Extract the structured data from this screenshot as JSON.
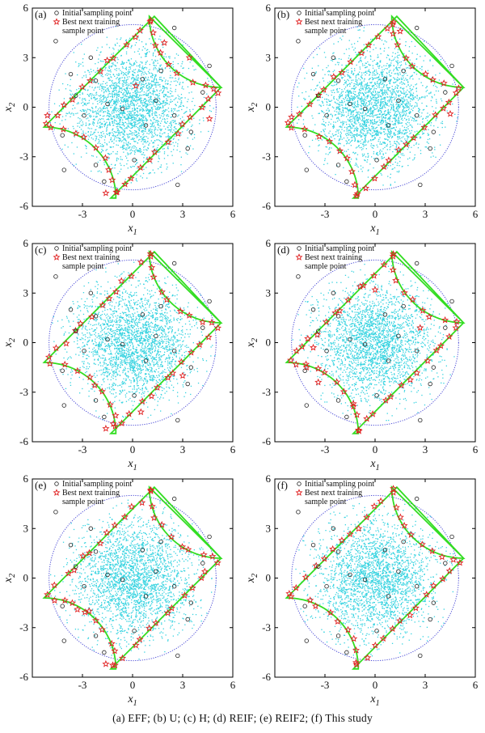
{
  "caption": "(a) EFF; (b) U; (c) H; (d) REIF; (e) REIF2; (f) This study",
  "colors": {
    "sample_points": "#35d3e0",
    "limit_state": "#33dd22",
    "sampling_circle": "#4a4ad6",
    "initial_points": "#222222",
    "best_next_points": "#e02020"
  },
  "chart_data": [
    {
      "type": "scatter",
      "panel": "(a)",
      "xlabel": "x1",
      "ylabel": "x2",
      "xlim": [
        -6,
        6
      ],
      "ylim": [
        -6,
        6
      ],
      "xticks": [
        "-3",
        "0",
        "3",
        "6"
      ],
      "yticks": [
        "-6",
        "-3",
        "0",
        "3",
        "6"
      ],
      "legend": [
        "Initial sampling point",
        "Best next training",
        "sample point"
      ],
      "legend_position": "top-left",
      "series": [
        {
          "name": "Initial sampling point",
          "marker": "circle"
        },
        {
          "name": "Best next training sample point",
          "marker": "star"
        }
      ],
      "extra_stars": [
        [
          0.2,
          1.3
        ],
        [
          -1.6,
          -5.2
        ],
        [
          3.4,
          3.0
        ],
        [
          1.9,
          3.9
        ],
        [
          -5.1,
          -0.5
        ],
        [
          4.6,
          -0.7
        ]
      ]
    },
    {
      "type": "scatter",
      "panel": "(b)",
      "xlabel": "x1",
      "ylabel": "x2",
      "xlim": [
        -6,
        6
      ],
      "ylim": [
        -6,
        6
      ],
      "xticks": [
        "-3",
        "0",
        "3",
        "6"
      ],
      "yticks": [
        "-6",
        "-3",
        "0",
        "3",
        "6"
      ],
      "legend": [
        "Initial sampling point",
        "Best next training",
        "sample point"
      ],
      "legend_position": "top-left",
      "series": [
        {
          "name": "Initial sampling point",
          "marker": "circle"
        },
        {
          "name": "Best next training sample point",
          "marker": "star"
        }
      ],
      "extra_stars": [
        [
          -5.0,
          -0.6
        ],
        [
          1.5,
          4.6
        ],
        [
          4.5,
          -0.4
        ]
      ]
    },
    {
      "type": "scatter",
      "panel": "(c)",
      "xlabel": "x1",
      "ylabel": "x2",
      "xlim": [
        -6,
        6
      ],
      "ylim": [
        -6,
        6
      ],
      "xticks": [
        "-3",
        "0",
        "3",
        "6"
      ],
      "yticks": [
        "-6",
        "-3",
        "0",
        "3",
        "6"
      ],
      "legend": [
        "Initial sampling point",
        "Best next training",
        "sample point"
      ],
      "legend_position": "top-left",
      "series": [
        {
          "name": "Initial sampling point",
          "marker": "circle"
        },
        {
          "name": "Best next training sample point",
          "marker": "star"
        }
      ],
      "extra_stars": [
        [
          -1.6,
          -5.2
        ],
        [
          0.5,
          -4.2
        ],
        [
          3.0,
          -2.0
        ]
      ]
    },
    {
      "type": "scatter",
      "panel": "(d)",
      "xlabel": "x1",
      "ylabel": "x2",
      "xlim": [
        -6,
        6
      ],
      "ylim": [
        -6,
        6
      ],
      "xticks": [
        "-3",
        "0",
        "3",
        "6"
      ],
      "yticks": [
        "-6",
        "-3",
        "0",
        "3",
        "6"
      ],
      "legend": [
        "Initial sampling point",
        "Best next training",
        "sample point"
      ],
      "legend_position": "top-left",
      "series": [
        {
          "name": "Initial sampling point",
          "marker": "circle"
        },
        {
          "name": "Best next training sample point",
          "marker": "star"
        }
      ],
      "extra_stars": [
        [
          -4.7,
          -0.5
        ],
        [
          -3.7,
          -0.3
        ],
        [
          -3.4,
          -2.4
        ],
        [
          -4.1,
          -1.5
        ],
        [
          0.0,
          3.2
        ],
        [
          -1.3,
          -3.7
        ],
        [
          2.7,
          0.9
        ]
      ]
    },
    {
      "type": "scatter",
      "panel": "(e)",
      "xlabel": "x1",
      "ylabel": "x2",
      "xlim": [
        -6,
        6
      ],
      "ylim": [
        -6,
        6
      ],
      "xticks": [
        "-3",
        "0",
        "3",
        "6"
      ],
      "yticks": [
        "-6",
        "-3",
        "0",
        "3",
        "6"
      ],
      "legend": [
        "Initial sampling point",
        "Best next training",
        "sample point"
      ],
      "legend_position": "top-left",
      "series": [
        {
          "name": "Initial sampling point",
          "marker": "circle"
        },
        {
          "name": "Best next training sample point",
          "marker": "star"
        }
      ],
      "extra_stars": [
        [
          -1.6,
          -5.2
        ],
        [
          -3.3,
          -1.9
        ],
        [
          -2.6,
          -2.0
        ]
      ]
    },
    {
      "type": "scatter",
      "panel": "(f)",
      "xlabel": "x1",
      "ylabel": "x2",
      "xlim": [
        -6,
        6
      ],
      "ylim": [
        -6,
        6
      ],
      "xticks": [
        "-3",
        "0",
        "3",
        "6"
      ],
      "yticks": [
        "-6",
        "-3",
        "0",
        "3",
        "6"
      ],
      "legend": [
        "Initial sampling point",
        "Best next training",
        "sample point"
      ],
      "legend_position": "top-left",
      "series": [
        {
          "name": "Initial sampling point",
          "marker": "circle"
        },
        {
          "name": "Best next training sample point",
          "marker": "star"
        }
      ],
      "extra_stars": []
    }
  ],
  "shared": {
    "initial_points": [
      [
        -4.6,
        4.0
      ],
      [
        -3.7,
        2.0
      ],
      [
        -2.5,
        3.0
      ],
      [
        -2.2,
        1.6
      ],
      [
        -1.5,
        0.2
      ],
      [
        -3.4,
        0.7
      ],
      [
        -4.2,
        -1.7
      ],
      [
        -4.1,
        -3.8
      ],
      [
        -2.2,
        -3.5
      ],
      [
        -1.7,
        -4.5
      ],
      [
        0.1,
        -3.2
      ],
      [
        0.8,
        -1.1
      ],
      [
        2.5,
        -0.5
      ],
      [
        3.3,
        -2.5
      ],
      [
        3.5,
        -1.5
      ],
      [
        2.7,
        -4.7
      ],
      [
        4.6,
        2.5
      ],
      [
        2.5,
        4.8
      ],
      [
        1.7,
        2.2
      ],
      [
        0.6,
        1.7
      ],
      [
        -0.6,
        -0.1
      ],
      [
        1.4,
        0.4
      ],
      [
        -2.9,
        -0.5
      ],
      [
        4.2,
        0.9
      ]
    ],
    "points_per_branch": {
      "diagonal": 13,
      "arc": 9
    }
  }
}
